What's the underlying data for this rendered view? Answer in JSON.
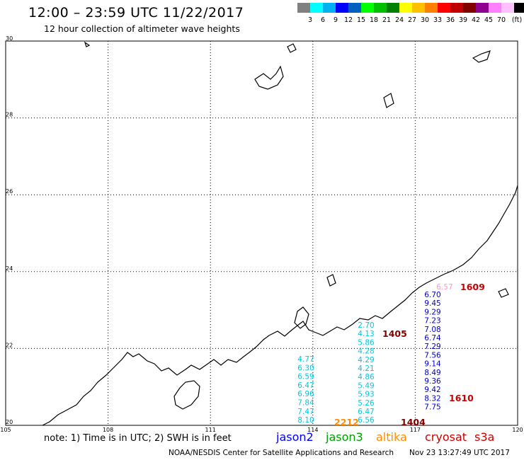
{
  "header": {
    "title": "12:00 – 23:59 UTC 11/22/2017",
    "subtitle": "12 hour collection of altimeter wave heights"
  },
  "legend": {
    "colors": [
      "#808080",
      "#00ffff",
      "#00b0f0",
      "#0000ff",
      "#0060c0",
      "#00ff00",
      "#00c000",
      "#008000",
      "#ffff00",
      "#ffc000",
      "#ff8000",
      "#ff0000",
      "#c00000",
      "#800000",
      "#900090",
      "#ff80ff",
      "#ffc0ff",
      "#000000"
    ],
    "labels": [
      "3",
      "6",
      "9",
      "12",
      "15",
      "18",
      "21",
      "24",
      "27",
      "30",
      "33",
      "36",
      "39",
      "42",
      "45",
      "70"
    ],
    "unit": "(ft)"
  },
  "axes": {
    "lon_labels": [
      "105",
      "108",
      "111",
      "114",
      "117",
      "120"
    ],
    "lat_labels": [
      "30",
      "28",
      "26",
      "24",
      "22",
      "20"
    ]
  },
  "tracks": [
    {
      "time": "1609",
      "time_color": "#cc0000",
      "color": "#ff99cc",
      "values": [
        "6.57"
      ]
    },
    {
      "time": "1405",
      "time_color": "#800000",
      "color": "#00c8e0",
      "values": [
        "2.70",
        "4.13",
        "5.86",
        "4.28",
        "4.29",
        "4.21",
        "4.86",
        "5.49",
        "5.93",
        "5.26",
        "6.47",
        "6.56"
      ]
    },
    {
      "time": "1610",
      "time_color": "#cc0000",
      "color": "#0000cc",
      "values": [
        "6.70",
        "9.45",
        "9.29",
        "7.23",
        "7.08",
        "6.74",
        "7.29",
        "7.56",
        "9.14",
        "8.49",
        "9.36",
        "9.42",
        "8.32",
        "7.75"
      ]
    },
    {
      "time": "1404",
      "time_color": "#800000",
      "color": "#00c8e0",
      "values": [
        "4.77",
        "6.30",
        "6.59",
        "6.47",
        "6.96",
        "7.84",
        "7.47",
        "8.10"
      ]
    },
    {
      "time": "2212",
      "time_color": "#ff8c00",
      "color": "#ff8c00",
      "values": []
    }
  ],
  "footer": {
    "notes": "note: 1) Time is in UTC; 2) SWH is in feet",
    "satellites": [
      {
        "name": "jason2",
        "color": "#0000ff"
      },
      {
        "name": "jason3",
        "color": "#00a000"
      },
      {
        "name": "altika",
        "color": "#ff8c00"
      },
      {
        "name": "cryosat",
        "color": "#cc0000"
      },
      {
        "name": "s3a",
        "color": "#cc0000"
      }
    ],
    "credit": "NOAA/NESDIS Center for Satellite Applications and Research",
    "created": "Nov 23 13:27:49 UTC 2017"
  }
}
